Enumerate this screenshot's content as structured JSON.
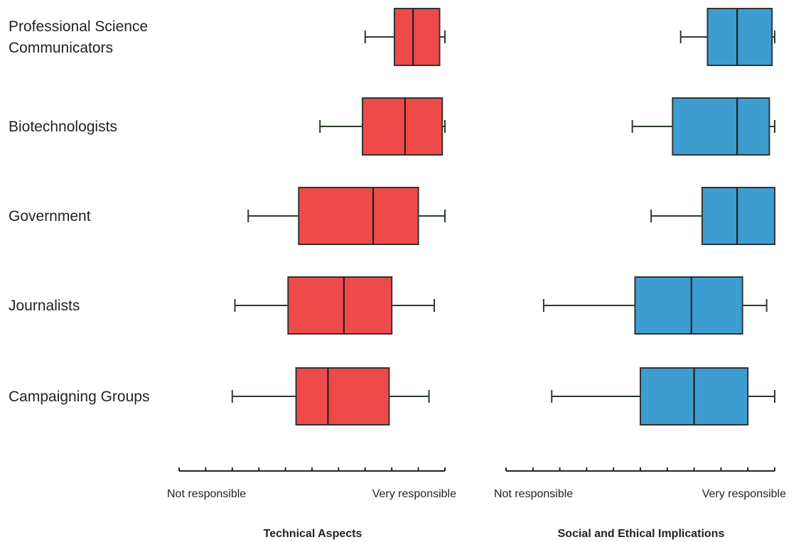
{
  "chart_data": {
    "type": "boxplot",
    "categories": [
      "Professional Science Communicators",
      "Biotechnologists",
      "Government",
      "Journalists",
      "Campaigning Groups"
    ],
    "category_lines": [
      [
        "Professional Science",
        "Communicators"
      ],
      [
        "Biotechnologists"
      ],
      [
        "Government"
      ],
      [
        "Journalists"
      ],
      [
        "Campaigning Groups"
      ]
    ],
    "scale": {
      "min": 0,
      "max": 10,
      "ticks": 11
    },
    "panels": [
      {
        "title": "Technical Aspects",
        "color": "#ef4a4a",
        "xlabel_left": "Not responsible",
        "xlabel_right": "Very responsible",
        "boxes": [
          {
            "whisker_low": 7.0,
            "q1": 8.1,
            "median": 8.8,
            "q3": 9.8,
            "whisker_high": 10.0
          },
          {
            "whisker_low": 5.3,
            "q1": 6.9,
            "median": 8.5,
            "q3": 9.9,
            "whisker_high": 10.0
          },
          {
            "whisker_low": 2.6,
            "q1": 4.5,
            "median": 7.3,
            "q3": 9.0,
            "whisker_high": 10.0
          },
          {
            "whisker_low": 2.1,
            "q1": 4.1,
            "median": 6.2,
            "q3": 8.0,
            "whisker_high": 9.6
          },
          {
            "whisker_low": 2.0,
            "q1": 4.4,
            "median": 5.6,
            "q3": 7.9,
            "whisker_high": 9.4
          }
        ]
      },
      {
        "title": "Social and Ethical Implications",
        "color": "#3e9dd0",
        "xlabel_left": "Not responsible",
        "xlabel_right": "Very responsible",
        "boxes": [
          {
            "whisker_low": 6.5,
            "q1": 7.5,
            "median": 8.6,
            "q3": 9.9,
            "whisker_high": 10.0
          },
          {
            "whisker_low": 4.7,
            "q1": 6.2,
            "median": 8.6,
            "q3": 9.8,
            "whisker_high": 10.0
          },
          {
            "whisker_low": 5.4,
            "q1": 7.3,
            "median": 8.6,
            "q3": 10.0,
            "whisker_high": 10.0
          },
          {
            "whisker_low": 1.4,
            "q1": 4.8,
            "median": 6.9,
            "q3": 8.8,
            "whisker_high": 9.7
          },
          {
            "whisker_low": 1.7,
            "q1": 5.0,
            "median": 7.0,
            "q3": 9.0,
            "whisker_high": 10.0
          }
        ]
      }
    ]
  }
}
